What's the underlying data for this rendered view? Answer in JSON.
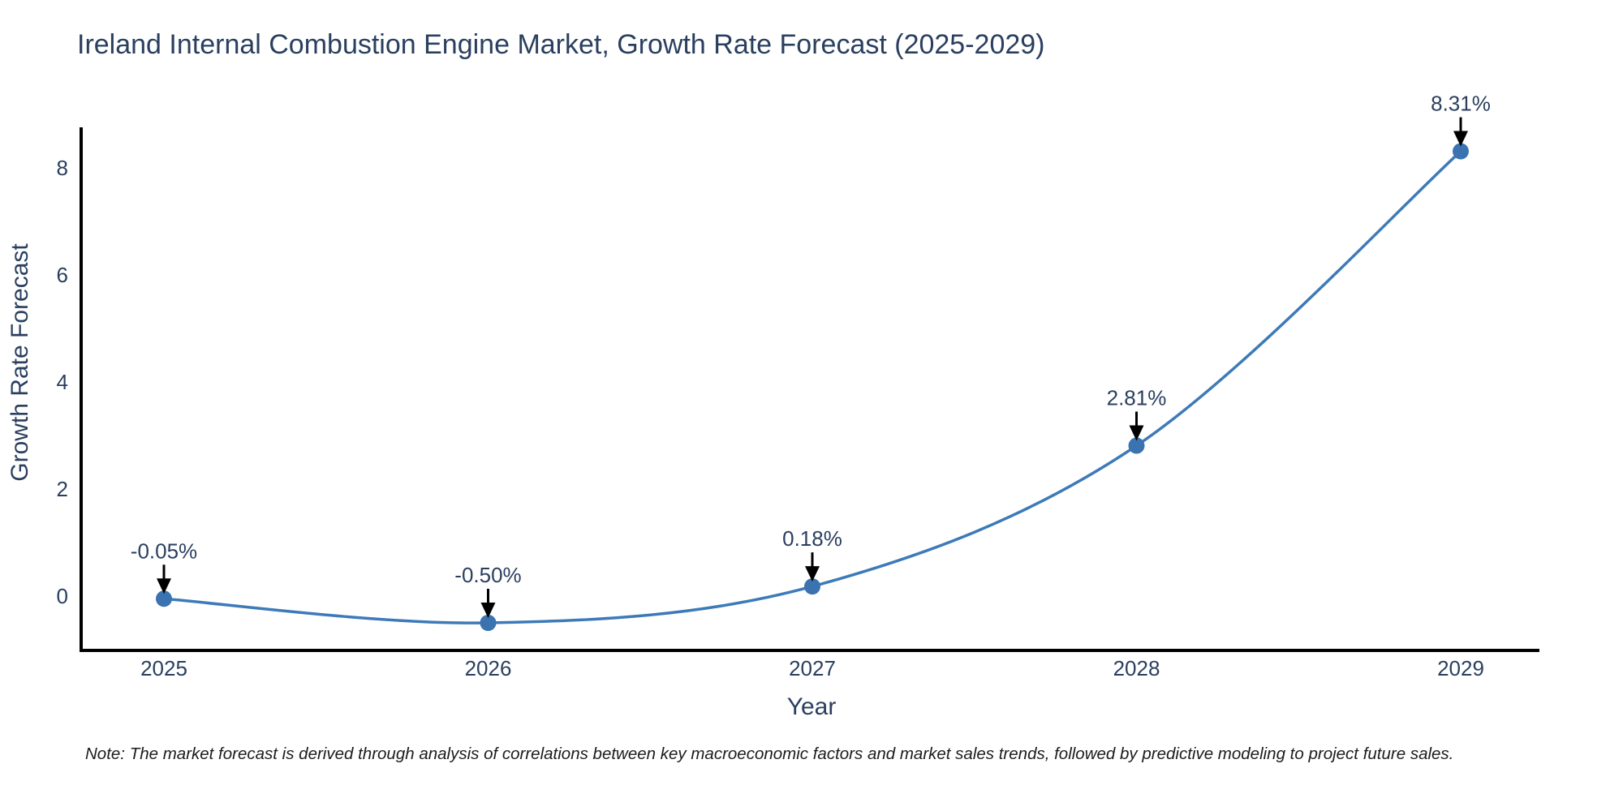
{
  "figure": {
    "note": "Note: The market forecast is derived through analysis of correlations between key macroeconomic factors and market sales trends, followed by predictive modeling to project future sales."
  },
  "chart_data": {
    "type": "line",
    "line_shape": "spline",
    "title": "Ireland Internal Combustion Engine Market, Growth Rate Forecast (2025-2029)",
    "xlabel": "Year",
    "ylabel": "Growth Rate Forecast",
    "categories": [
      "2025",
      "2026",
      "2027",
      "2028",
      "2029"
    ],
    "values": [
      -0.05,
      -0.5,
      0.18,
      2.81,
      8.31
    ],
    "point_labels": [
      "-0.05%",
      "-0.50%",
      "0.18%",
      "2.81%",
      "8.31%"
    ],
    "yticks": [
      0,
      2,
      4,
      6,
      8
    ],
    "ylim": [
      -1.05,
      8.9
    ],
    "grid": false,
    "legend": "none",
    "colors": {
      "line": "#3d7ab8",
      "marker": "#3a73b0",
      "axis": "#000000",
      "tick_text": "#2a3f5f",
      "annotation_text": "#2a3f5f",
      "arrow": "#000000",
      "title_text": "#2a3f5f",
      "note_text": "#1c1c1c",
      "background": "#ffffff"
    }
  }
}
